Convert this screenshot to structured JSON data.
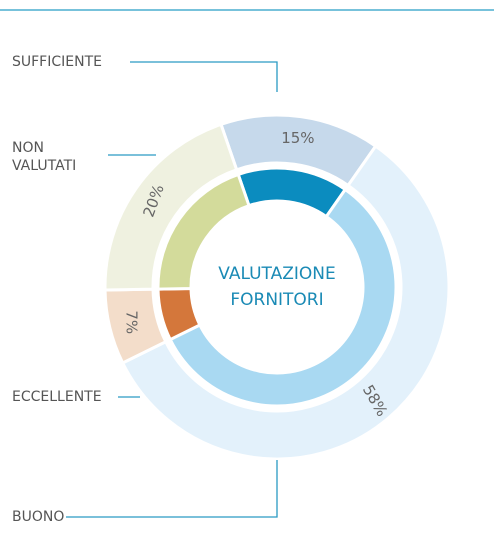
{
  "chart_data": {
    "type": "donut",
    "title_lines": [
      "VALUTAZIONE",
      "FORNITORI"
    ],
    "categories": [
      "SUFFICIENTE",
      "BUONO",
      "ECCELLENTE",
      "NON VALUTATI"
    ],
    "values": [
      15,
      58,
      7,
      20
    ],
    "value_labels": [
      "15%",
      "58%",
      "7%",
      "20%"
    ],
    "outer_colors": [
      "#c6d9eb",
      "#e3f1fb",
      "#f3ddca",
      "#eff1e0"
    ],
    "inner_colors": [
      "#0b8cbf",
      "#a9d9f2",
      "#d4773b",
      "#d3db9b"
    ]
  }
}
